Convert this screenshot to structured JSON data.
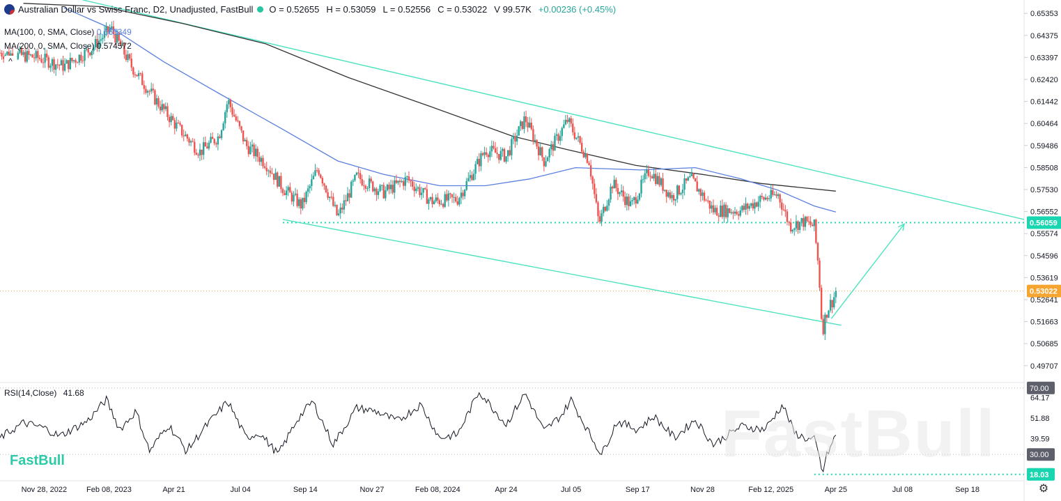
{
  "header": {
    "title": "Australian Dollar vs Swiss Franc, D2, Unadjusted, FastBull",
    "open": "O = 0.52655",
    "high": "H = 0.53059",
    "low": "L = 0.52556",
    "close": "C = 0.53022",
    "volume": "V 99.57K",
    "change": "+0.00236 (+0.45%)"
  },
  "indicators": {
    "ma100_label": "MA(100, 0, SMA, Close)",
    "ma100_value": "0.565349",
    "ma200_label": "MA(200, 0, SMA, Close)",
    "ma200_value": "0.574572",
    "rsi_label": "RSI(14,Close)",
    "rsi_value": "41.68",
    "collapse_glyph": "^"
  },
  "brand": "FastBull",
  "colors": {
    "up": "#26a69a",
    "down": "#ef5350",
    "ma100": "#5b7fe0",
    "ma200": "#333333",
    "channel": "#4de3c0",
    "price_tag": "#f7a531",
    "level_tag": "#19d6b0"
  },
  "chart_data": {
    "type": "candlestick",
    "price_axis": {
      "ticks": [
        "0.65353",
        "0.64375",
        "0.63397",
        "0.62420",
        "0.61442",
        "0.60464",
        "0.59486",
        "0.58508",
        "0.57530",
        "0.56552",
        "0.55574",
        "0.54596",
        "0.53619",
        "0.52641",
        "0.51663",
        "0.50685",
        "0.49707"
      ],
      "range": [
        0.4905,
        0.657
      ]
    },
    "time_axis": {
      "ticks": [
        "Nov 28, 2022",
        "Feb 08, 2023",
        "Apr 21",
        "Jul 04",
        "Sep 14",
        "Nov 27",
        "Feb 08, 2024",
        "Apr 24",
        "Jul 05",
        "Sep 17",
        "Nov 28",
        "Feb 12, 2025",
        "Apr 25",
        "Jul 08",
        "Sep 18"
      ],
      "tick_dates": [
        "2022-11-28",
        "2023-02-08",
        "2023-04-21",
        "2023-07-04",
        "2023-09-14",
        "2023-11-27",
        "2024-02-08",
        "2024-04-24",
        "2024-07-05",
        "2024-09-17",
        "2024-11-28",
        "2025-02-12",
        "2025-04-25",
        "2025-07-08",
        "2025-09-18"
      ],
      "range": [
        "2022-10-10",
        "2025-11-20"
      ]
    },
    "price_anchors": [
      [
        "2022-10-10",
        0.636
      ],
      [
        "2022-11-20",
        0.634
      ],
      [
        "2022-12-20",
        0.63
      ],
      [
        "2023-01-20",
        0.638
      ],
      [
        "2023-02-10",
        0.647
      ],
      [
        "2023-03-05",
        0.63
      ],
      [
        "2023-04-01",
        0.615
      ],
      [
        "2023-04-25",
        0.603
      ],
      [
        "2023-05-20",
        0.592
      ],
      [
        "2023-06-10",
        0.599
      ],
      [
        "2023-06-20",
        0.615
      ],
      [
        "2023-07-10",
        0.595
      ],
      [
        "2023-08-01",
        0.587
      ],
      [
        "2023-08-20",
        0.576
      ],
      [
        "2023-09-10",
        0.568
      ],
      [
        "2023-09-28",
        0.585
      ],
      [
        "2023-10-20",
        0.563
      ],
      [
        "2023-11-10",
        0.581
      ],
      [
        "2023-12-10",
        0.574
      ],
      [
        "2024-01-05",
        0.58
      ],
      [
        "2024-02-01",
        0.57
      ],
      [
        "2024-03-01",
        0.571
      ],
      [
        "2024-04-01",
        0.593
      ],
      [
        "2024-04-24",
        0.59
      ],
      [
        "2024-05-15",
        0.607
      ],
      [
        "2024-06-05",
        0.588
      ],
      [
        "2024-07-01",
        0.606
      ],
      [
        "2024-07-25",
        0.588
      ],
      [
        "2024-08-05",
        0.56
      ],
      [
        "2024-08-20",
        0.578
      ],
      [
        "2024-09-10",
        0.568
      ],
      [
        "2024-09-30",
        0.584
      ],
      [
        "2024-10-25",
        0.572
      ],
      [
        "2024-11-15",
        0.58
      ],
      [
        "2024-12-10",
        0.566
      ],
      [
        "2025-01-10",
        0.566
      ],
      [
        "2025-02-01",
        0.571
      ],
      [
        "2025-02-20",
        0.573
      ],
      [
        "2025-03-05",
        0.559
      ],
      [
        "2025-03-20",
        0.561
      ],
      [
        "2025-04-01",
        0.559
      ],
      [
        "2025-04-06",
        0.54
      ],
      [
        "2025-04-10",
        0.512
      ],
      [
        "2025-04-14",
        0.52
      ],
      [
        "2025-04-18",
        0.524
      ],
      [
        "2025-04-22",
        0.5263
      ],
      [
        "2025-04-25",
        0.5302
      ]
    ],
    "ma100": [
      [
        "2022-12-20",
        0.656
      ],
      [
        "2023-02-15",
        0.646
      ],
      [
        "2023-04-10",
        0.632
      ],
      [
        "2023-06-10",
        0.618
      ],
      [
        "2023-08-20",
        0.602
      ],
      [
        "2023-10-20",
        0.588
      ],
      [
        "2023-12-10",
        0.582
      ],
      [
        "2024-02-10",
        0.577
      ],
      [
        "2024-04-01",
        0.577
      ],
      [
        "2024-05-20",
        0.58
      ],
      [
        "2024-07-10",
        0.585
      ],
      [
        "2024-09-20",
        0.584
      ],
      [
        "2024-11-20",
        0.585
      ],
      [
        "2025-01-10",
        0.58
      ],
      [
        "2025-02-20",
        0.575
      ],
      [
        "2025-04-01",
        0.568
      ],
      [
        "2025-04-25",
        0.5653
      ]
    ],
    "ma200": [
      [
        "2022-11-05",
        0.658
      ],
      [
        "2023-02-01",
        0.6565
      ],
      [
        "2023-05-01",
        0.649
      ],
      [
        "2023-08-01",
        0.64
      ],
      [
        "2023-11-01",
        0.625
      ],
      [
        "2024-02-01",
        0.612
      ],
      [
        "2024-05-01",
        0.599
      ],
      [
        "2024-07-01",
        0.593
      ],
      [
        "2024-09-15",
        0.586
      ],
      [
        "2024-11-28",
        0.582
      ],
      [
        "2025-02-01",
        0.578
      ],
      [
        "2025-04-25",
        0.5746
      ]
    ],
    "channel_upper": [
      [
        "2023-01-10",
        0.6595
      ],
      [
        "2025-11-20",
        0.562
      ]
    ],
    "channel_lower": [
      [
        "2023-08-20",
        0.562
      ],
      [
        "2025-05-01",
        0.515
      ]
    ],
    "support_level": {
      "from": "2023-08-20",
      "to": "2025-11-20",
      "value": 0.56059
    },
    "projection_arrow": [
      [
        "2025-04-20",
        0.518
      ],
      [
        "2025-07-10",
        0.56
      ]
    ],
    "rsi": {
      "ticks": [
        "70.00",
        "64.17",
        "51.88",
        "39.59",
        "30.00",
        "18.03"
      ],
      "levels": [
        70,
        30
      ],
      "range": [
        15,
        72
      ],
      "min_marker": 18.03,
      "series": [
        [
          "2022-10-10",
          40
        ],
        [
          "2022-11-05",
          49
        ],
        [
          "2022-11-28",
          46
        ],
        [
          "2022-12-15",
          41
        ],
        [
          "2023-01-15",
          50
        ],
        [
          "2023-02-05",
          63
        ],
        [
          "2023-02-20",
          45
        ],
        [
          "2023-03-10",
          56
        ],
        [
          "2023-03-25",
          32
        ],
        [
          "2023-04-15",
          48
        ],
        [
          "2023-05-05",
          32
        ],
        [
          "2023-05-25",
          46
        ],
        [
          "2023-06-20",
          62
        ],
        [
          "2023-07-10",
          40
        ],
        [
          "2023-07-25",
          43
        ],
        [
          "2023-08-15",
          30
        ],
        [
          "2023-09-05",
          51
        ],
        [
          "2023-09-22",
          62
        ],
        [
          "2023-10-15",
          36
        ],
        [
          "2023-11-10",
          58
        ],
        [
          "2023-12-01",
          56
        ],
        [
          "2023-12-25",
          50
        ],
        [
          "2024-01-20",
          60
        ],
        [
          "2024-02-10",
          40
        ],
        [
          "2024-03-01",
          42
        ],
        [
          "2024-03-25",
          68
        ],
        [
          "2024-04-24",
          48
        ],
        [
          "2024-05-15",
          67
        ],
        [
          "2024-06-05",
          44
        ],
        [
          "2024-06-25",
          54
        ],
        [
          "2024-07-05",
          63
        ],
        [
          "2024-07-28",
          40
        ],
        [
          "2024-08-08",
          30
        ],
        [
          "2024-08-25",
          50
        ],
        [
          "2024-09-17",
          45
        ],
        [
          "2024-10-05",
          53
        ],
        [
          "2024-10-28",
          40
        ],
        [
          "2024-11-20",
          51
        ],
        [
          "2024-12-10",
          36
        ],
        [
          "2025-01-10",
          47
        ],
        [
          "2025-02-05",
          45
        ],
        [
          "2025-02-25",
          60
        ],
        [
          "2025-03-10",
          43
        ],
        [
          "2025-03-25",
          39
        ],
        [
          "2025-04-01",
          39
        ],
        [
          "2025-04-06",
          30
        ],
        [
          "2025-04-10",
          18
        ],
        [
          "2025-04-14",
          28
        ],
        [
          "2025-04-18",
          33
        ],
        [
          "2025-04-25",
          41.68
        ]
      ]
    },
    "last_price_tag": "0.53022",
    "level_tag": "0.56059",
    "rsi_70_tag": "70.00",
    "rsi_30_tag": "30.00",
    "rsi_min_tag": "18.03"
  }
}
